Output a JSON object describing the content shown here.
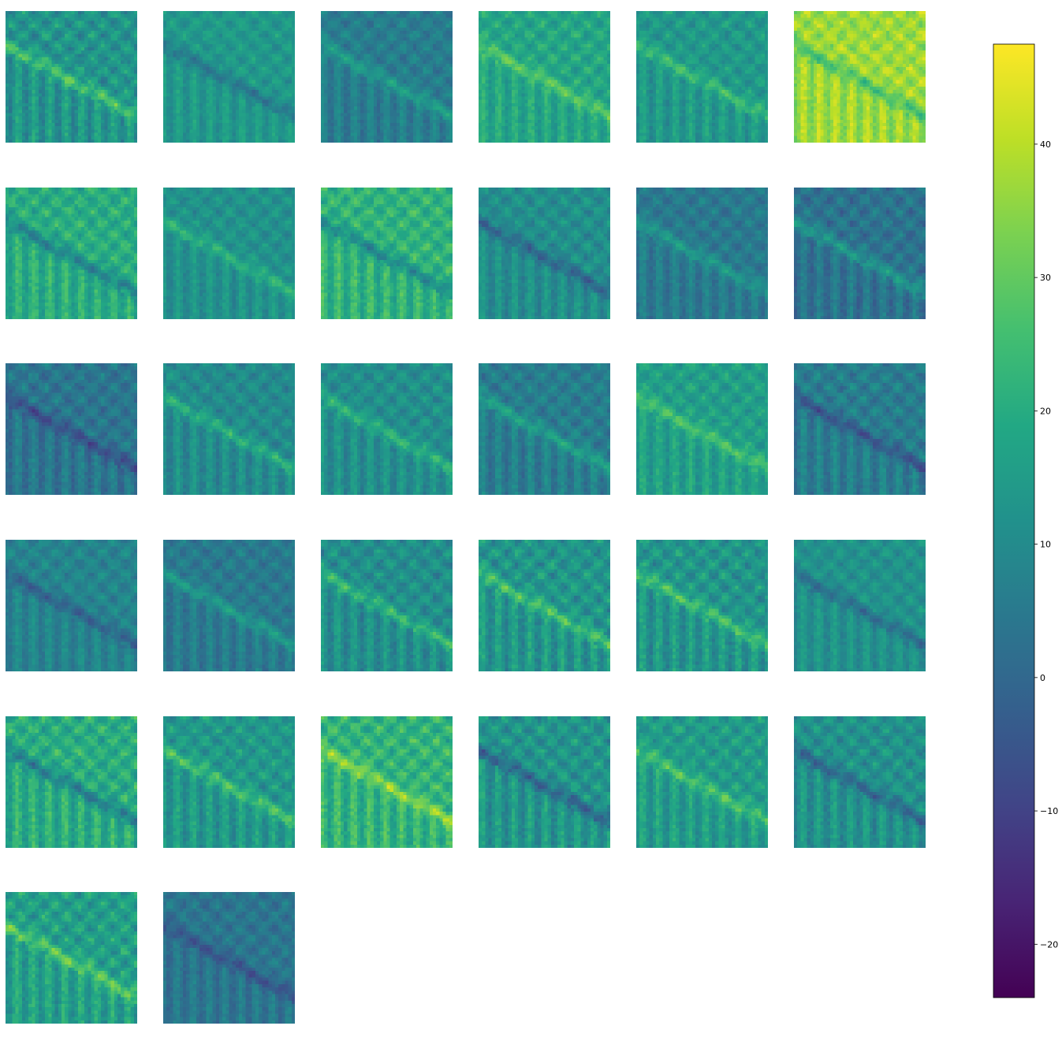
{
  "chart_data": {
    "type": "heatmap",
    "description_note": "",
    "grid": {
      "rows": 6,
      "cols": 6,
      "panel_count": 32
    },
    "colormap": "viridis",
    "colorbar": {
      "vmin": -24,
      "vmax": 47.5,
      "ticks": [
        -20,
        -10,
        0,
        10,
        20,
        30,
        40
      ],
      "tick_labels": [
        "−20",
        "−10",
        "0",
        "10",
        "20",
        "30",
        "40"
      ]
    },
    "panels": [
      {
        "index": 0,
        "mean": 13,
        "contrast": 10,
        "band_sign": 1
      },
      {
        "index": 1,
        "mean": 14,
        "contrast": 7,
        "band_sign": -1
      },
      {
        "index": 2,
        "mean": 6,
        "contrast": 7,
        "band_sign": 1
      },
      {
        "index": 3,
        "mean": 18,
        "contrast": 8,
        "band_sign": 1
      },
      {
        "index": 4,
        "mean": 14,
        "contrast": 8,
        "band_sign": 1
      },
      {
        "index": 5,
        "mean": 37,
        "contrast": 8,
        "band_sign": -1
      },
      {
        "index": 6,
        "mean": 20,
        "contrast": 9,
        "band_sign": -1
      },
      {
        "index": 7,
        "mean": 12,
        "contrast": 7,
        "band_sign": 1
      },
      {
        "index": 8,
        "mean": 22,
        "contrast": 9,
        "band_sign": -1
      },
      {
        "index": 9,
        "mean": 11,
        "contrast": 8,
        "band_sign": -1
      },
      {
        "index": 10,
        "mean": 5,
        "contrast": 7,
        "band_sign": 1
      },
      {
        "index": 11,
        "mean": 3,
        "contrast": 8,
        "band_sign": 1
      },
      {
        "index": 12,
        "mean": 4,
        "contrast": 8,
        "band_sign": -1
      },
      {
        "index": 13,
        "mean": 10,
        "contrast": 8,
        "band_sign": 1
      },
      {
        "index": 14,
        "mean": 11,
        "contrast": 8,
        "band_sign": 1
      },
      {
        "index": 15,
        "mean": 6,
        "contrast": 8,
        "band_sign": 1
      },
      {
        "index": 16,
        "mean": 16,
        "contrast": 8,
        "band_sign": 1
      },
      {
        "index": 17,
        "mean": 6,
        "contrast": 8,
        "band_sign": -1
      },
      {
        "index": 18,
        "mean": 8,
        "contrast": 7,
        "band_sign": -1
      },
      {
        "index": 19,
        "mean": 5,
        "contrast": 7,
        "band_sign": 1
      },
      {
        "index": 20,
        "mean": 11,
        "contrast": 9,
        "band_sign": 1
      },
      {
        "index": 21,
        "mean": 13,
        "contrast": 10,
        "band_sign": 1
      },
      {
        "index": 22,
        "mean": 13,
        "contrast": 10,
        "band_sign": 1
      },
      {
        "index": 23,
        "mean": 12,
        "contrast": 7,
        "band_sign": -1
      },
      {
        "index": 24,
        "mean": 20,
        "contrast": 10,
        "band_sign": -1
      },
      {
        "index": 25,
        "mean": 14,
        "contrast": 9,
        "band_sign": 1
      },
      {
        "index": 26,
        "mean": 22,
        "contrast": 10,
        "band_sign": 1
      },
      {
        "index": 27,
        "mean": 13,
        "contrast": 10,
        "band_sign": -1
      },
      {
        "index": 28,
        "mean": 15,
        "contrast": 9,
        "band_sign": 1
      },
      {
        "index": 29,
        "mean": 12,
        "contrast": 9,
        "band_sign": -1
      },
      {
        "index": 30,
        "mean": 16,
        "contrast": 10,
        "band_sign": 1
      },
      {
        "index": 31,
        "mean": 4,
        "contrast": 7,
        "band_sign": -1
      }
    ]
  }
}
